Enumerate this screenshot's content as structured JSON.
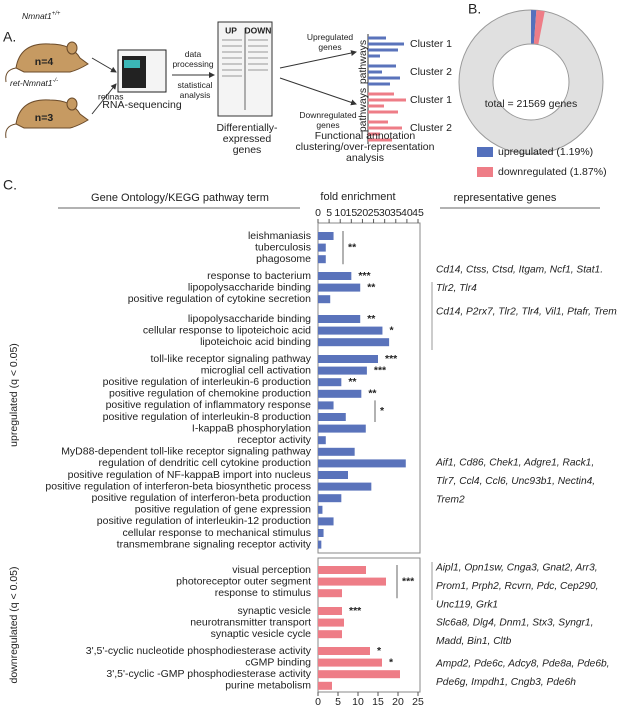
{
  "panel_labels": {
    "a": "A.",
    "b": "B.",
    "c": "C."
  },
  "panel_a": {
    "wt_name": "Nmnat1",
    "wt_genotype": "+/+",
    "wt_n": "n=4",
    "ko_name": "ret-Nmnat1",
    "ko_genotype": "-/-",
    "ko_n": "n=3",
    "retinas": "retinas",
    "sequencing": "RNA-sequencing",
    "processing": [
      "data",
      "processing"
    ],
    "statistics": [
      "statistical",
      "analysis"
    ],
    "up": "UP",
    "down": "DOWN",
    "deg": [
      "Differentially-",
      "expressed",
      "genes"
    ],
    "up_genes": [
      "Upregulated",
      "genes"
    ],
    "down_genes": [
      "Downregulated",
      "genes"
    ],
    "pathways": "pathways",
    "cluster1": "Cluster 1",
    "cluster2": "Cluster 2",
    "functional": [
      "Functional annotation",
      "clustering/over-representation",
      "analysis"
    ]
  },
  "panel_c": {
    "term_header": "Gene Ontology/KEGG pathway term",
    "genes_header": "representative genes"
  },
  "chart_data": [
    {
      "type": "pie",
      "categories": [
        "upregulated (1.19%)",
        "downregulated (1.87%)"
      ],
      "values": [
        1.19,
        1.87
      ],
      "colors": [
        "#5470bc",
        "#ee7d87"
      ],
      "annotation": "total = 21569 genes"
    },
    {
      "type": "bar",
      "orientation": "horizontal",
      "side_label": "upregulated (q < 0.05)",
      "xlabel": "fold enrichment",
      "color": "#5a73bb",
      "categories": [
        "leishmaniasis",
        "tuberculosis",
        "phagosome",
        "response to bacterium",
        "lipopolysaccharide binding",
        "positive regulation of cytokine secretion",
        "lipopolysaccharide binding",
        "cellular response to lipoteichoic acid",
        "lipoteichoic acid binding",
        "toll-like receptor signaling pathway",
        "microglial cell activation",
        "positive regulation of interleukin-6 production",
        "positive regulation of chemokine production",
        "positive regulation of inflammatory response",
        "positive regulation of interleukin-8 production",
        "I-kappaB phosphorylation",
        "receptor activity",
        "MyD88-dependent toll-like receptor signaling pathway",
        "regulation of dendritic cell cytokine production",
        "positive regulation of NF-kappaB import into nucleus",
        "positive regulation of interferon-beta biosynthetic process",
        "positive regulation of interferon-beta production",
        "positive regulation of gene expression",
        "positive regulation of interleukin-12 production",
        "cellular response to mechanical stimulus",
        "transmembrane signaling receptor activity"
      ],
      "values": [
        7,
        3.5,
        3.5,
        15,
        19,
        5.5,
        19,
        29,
        32,
        27,
        22,
        10.5,
        19.5,
        7,
        12.5,
        21.5,
        3.5,
        16.5,
        39.5,
        13.5,
        24,
        10.5,
        2,
        7,
        2.5,
        1.5
      ],
      "xlim": [
        0,
        45
      ],
      "xticks": [
        0,
        5,
        10,
        15,
        20,
        25,
        30,
        35,
        40,
        45
      ],
      "significance": [
        "**",
        "***",
        "**",
        "**",
        "*",
        "***",
        "***",
        "**",
        "**",
        "*"
      ],
      "genes": [
        [
          "Cd14, Ctss, Ctsd, Itgam, Ncf1, Stat1.",
          "Tlr2, Tlr4"
        ],
        [
          "Cd14, P2rx7, Tlr2, Tlr4, Vil1, Ptafr, Trem2"
        ],
        [
          "Aif1, Cd86, Chek1, Adgre1, Rack1,",
          "Tlr7, Ccl4, Ccl6, Unc93b1, Nectin4,",
          "Trem2"
        ]
      ]
    },
    {
      "type": "bar",
      "orientation": "horizontal",
      "side_label": "downregulated (q < 0.05)",
      "color": "#ee7d87",
      "categories": [
        "visual perception",
        "photoreceptor outer segment",
        "response to stimulus",
        "synaptic vesicle",
        "neurotransmitter transport",
        "synaptic vesicle cycle",
        "3',5'-cyclic nucleotide phosphodiesterase activity",
        "cGMP binding",
        "3',5'-cyclic -GMP phosphodiesterase activity",
        "purine metabolism"
      ],
      "values": [
        12,
        17,
        6,
        6,
        6.5,
        6,
        13,
        16,
        20.5,
        3.5
      ],
      "xlim": [
        0,
        25
      ],
      "xticks": [
        0,
        5,
        10,
        15,
        20,
        25
      ],
      "significance": [
        "***",
        "***",
        "*",
        "*"
      ],
      "genes": [
        [
          "Aipl1, Opn1sw, Cnga3, Gnat2, Arr3,",
          "Prom1, Prph2, Rcvrn, Pdc, Cep290,",
          "Unc119, Grk1"
        ],
        [
          "Slc6a8, Dlg4, Dnm1, Stx3, Syngr1,",
          "Madd, Bin1, Cltb"
        ],
        [
          "Ampd2, Pde6c, Adcy8, Pde8a, Pde6b,",
          "Pde6g, Impdh1, Cngb3, Pde6h"
        ]
      ]
    }
  ]
}
